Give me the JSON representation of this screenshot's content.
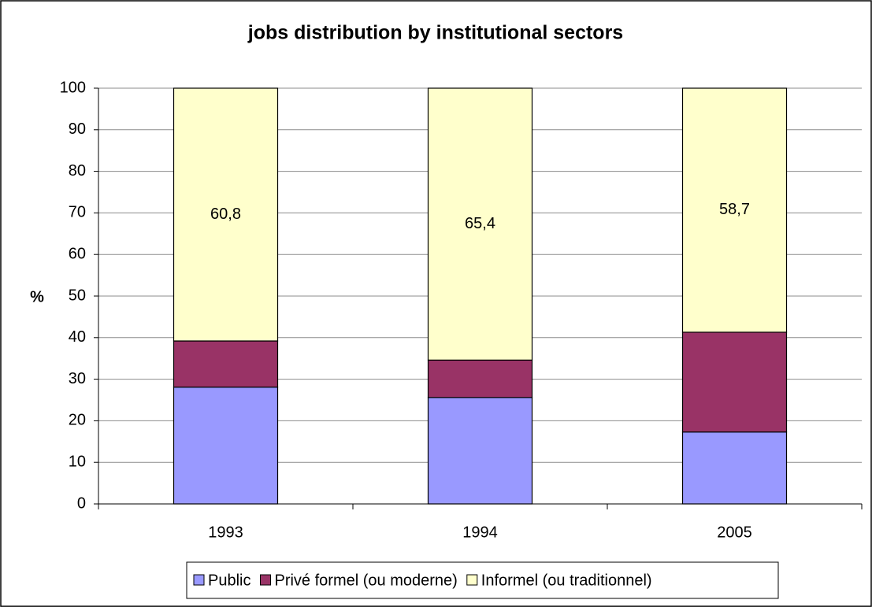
{
  "chart_data": {
    "type": "stacked_bar",
    "title": "jobs distribution by institutional sectors",
    "y_label": "%",
    "categories": [
      "1993",
      "1994",
      "2005"
    ],
    "series": [
      {
        "name": "Public",
        "color": "#9999ff",
        "values": [
          28.1,
          25.6,
          17.3
        ]
      },
      {
        "name": "Privé formel (ou moderne)",
        "color": "#993366",
        "values": [
          11.1,
          9.0,
          24.0
        ]
      },
      {
        "name": "Informel (ou traditionnel)",
        "color": "#ffffcc",
        "values": [
          60.8,
          65.4,
          58.7
        ],
        "value_labels": [
          "60,8",
          "65,4",
          "58,7"
        ]
      }
    ],
    "ylim": [
      0,
      100
    ],
    "yticks": [
      0,
      10,
      20,
      30,
      40,
      50,
      60,
      70,
      80,
      90,
      100
    ],
    "grid": true,
    "legend": "bottom"
  }
}
